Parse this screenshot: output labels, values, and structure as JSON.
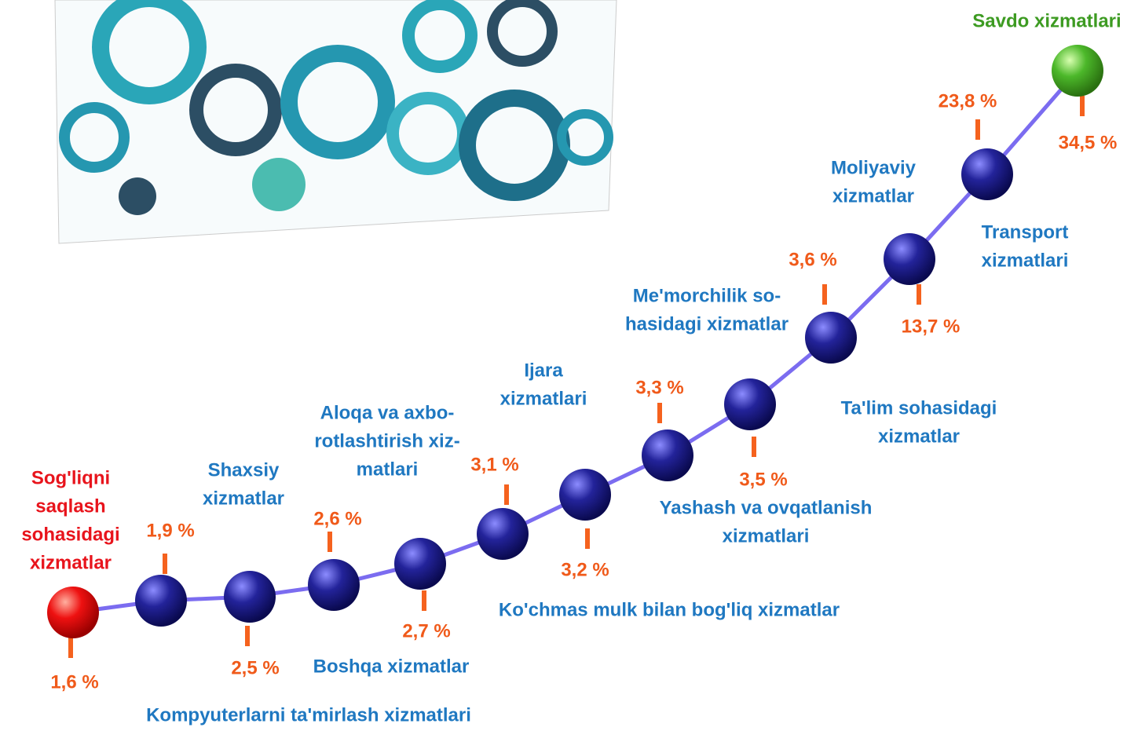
{
  "nodes": [
    {
      "label": [
        "Sog'liqni",
        "saqlash",
        "sohasidagi",
        "xizmatlar"
      ],
      "value": "1,6 %"
    },
    {
      "label": [
        "Kompyuterlarni ta'mirlash xizmatlari"
      ],
      "value": "1,9 %"
    },
    {
      "label": [
        "Shaxsiy",
        "xizmatlar"
      ],
      "value": "2,5 %"
    },
    {
      "label": [
        "Boshqa xizmatlar"
      ],
      "value": "2,6 %"
    },
    {
      "label": [
        "Aloqa va axbo-",
        "rotlashtirish xiz-",
        "matlari"
      ],
      "value": "2,7 %"
    },
    {
      "label": [
        "Ko'chmas mulk bilan bog'liq xizmatlar"
      ],
      "value": "3,1 %"
    },
    {
      "label": [
        "Ijara",
        "xizmatlari"
      ],
      "value": "3,2 %"
    },
    {
      "label": [
        "Yashash va ovqatlanish",
        "xizmatlari"
      ],
      "value": "3,3 %"
    },
    {
      "label": [
        "Ta'lim sohasidagi",
        "xizmatlar"
      ],
      "value": "3,5 %"
    },
    {
      "label": [
        "Me'morchilik so-",
        "hasidagi xizmatlar"
      ],
      "value": "3,6 %"
    },
    {
      "label": [
        "Transport",
        "xizmatlari"
      ],
      "value": "13,7 %"
    },
    {
      "label": [
        "Moliyaviy",
        "xizmatlar"
      ],
      "value": "23,8 %"
    },
    {
      "label": [
        "Savdo xizmatlari"
      ],
      "value": "34,5 %"
    }
  ]
}
